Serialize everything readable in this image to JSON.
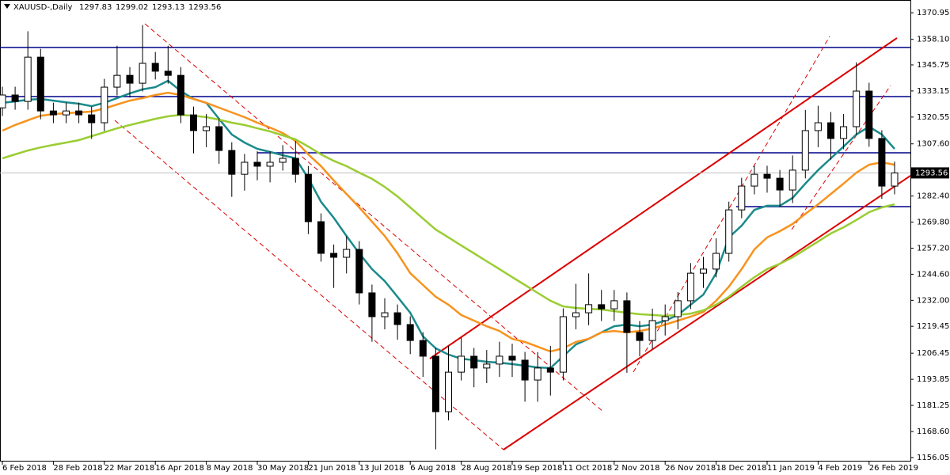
{
  "chart_data": {
    "type": "candlestick",
    "title": "XAUUSD-,Daily",
    "header_values": [
      1297.83,
      1299.02,
      1293.13,
      1293.56
    ],
    "last_price": 1293.56,
    "categories": [
      "6 Feb 2018",
      null,
      null,
      null,
      "28 Feb 2018",
      null,
      null,
      null,
      "22 Mar 2018",
      null,
      null,
      null,
      "16 Apr 2018",
      null,
      null,
      null,
      "8 May 2018",
      null,
      null,
      null,
      "30 May 2018",
      null,
      null,
      null,
      "21 Jun 2018",
      null,
      null,
      null,
      "13 Jul 2018",
      null,
      null,
      null,
      "6 Aug 2018",
      null,
      null,
      null,
      "28 Aug 2018",
      null,
      null,
      null,
      "19 Sep 2018",
      null,
      null,
      null,
      "11 Oct 2018",
      null,
      null,
      null,
      "2 Nov 2018",
      null,
      null,
      null,
      "26 Nov 2018",
      null,
      null,
      null,
      "18 Dec 2018",
      null,
      null,
      null,
      "11 Jan 2019",
      null,
      null,
      null,
      "4 Feb 2019",
      null,
      null,
      null,
      "26 Feb 2019",
      null,
      null
    ],
    "open": [
      1325.0,
      1331.2,
      1328.1,
      1349.5,
      1323.5,
      1321.6,
      1323.5,
      1321.6,
      1317.8,
      1335.0,
      1340.7,
      1336.9,
      1346.5,
      1342.7,
      1340.7,
      1321.6,
      1314.0,
      1315.9,
      1304.4,
      1292.9,
      1298.7,
      1296.8,
      1298.7,
      1300.6,
      1292.9,
      1270.0,
      1254.7,
      1252.8,
      1256.6,
      1235.6,
      1224.1,
      1226.0,
      1220.3,
      1212.6,
      1205.0,
      1178.2,
      1197.3,
      1205.0,
      1199.3,
      1201.2,
      1205.0,
      1203.1,
      1193.5,
      1199.3,
      1197.3,
      1224.1,
      1226.0,
      1229.9,
      1227.9,
      1231.8,
      1216.5,
      1212.6,
      1222.2,
      1224.1,
      1231.8,
      1245.1,
      1247.1,
      1254.7,
      1275.7,
      1287.2,
      1292.9,
      1291.0,
      1285.3,
      1294.9,
      1314.0,
      1317.8,
      1310.2,
      1315.9,
      1333.1,
      1310.2,
      1287.2
    ],
    "high": [
      1335.2,
      1335.2,
      1362.0,
      1353.5,
      1327.5,
      1327.5,
      1327.5,
      1325.6,
      1339.0,
      1355.0,
      1344.7,
      1365.0,
      1352.0,
      1355.0,
      1344.7,
      1325.6,
      1322.0,
      1319.9,
      1308.4,
      1302.7,
      1304.0,
      1304.0,
      1307.0,
      1309.0,
      1296.9,
      1274.0,
      1259.0,
      1263.0,
      1260.6,
      1239.6,
      1233.0,
      1230.0,
      1224.3,
      1216.6,
      1209.0,
      1210.0,
      1214.0,
      1209.0,
      1208.0,
      1212.0,
      1211.0,
      1207.1,
      1207.0,
      1210.0,
      1228.1,
      1240.0,
      1245.0,
      1237.0,
      1237.0,
      1235.8,
      1222.0,
      1228.0,
      1230.0,
      1236.0,
      1250.0,
      1253.0,
      1262.0,
      1279.7,
      1291.2,
      1297.0,
      1297.0,
      1295.0,
      1302.0,
      1324.0,
      1326.0,
      1323.0,
      1322.0,
      1347.0,
      1337.1,
      1314.2,
      1299.02
    ],
    "low": [
      1321.0,
      1324.1,
      1324.1,
      1319.5,
      1317.6,
      1317.6,
      1317.6,
      1310.0,
      1313.8,
      1331.0,
      1330.0,
      1332.9,
      1338.7,
      1336.7,
      1317.6,
      1303.0,
      1306.0,
      1298.0,
      1282.0,
      1285.0,
      1290.0,
      1289.0,
      1294.7,
      1288.9,
      1264.0,
      1250.7,
      1238.0,
      1245.0,
      1230.0,
      1212.0,
      1218.0,
      1213.0,
      1206.0,
      1195.0,
      1160.0,
      1174.0,
      1193.3,
      1190.0,
      1192.0,
      1195.0,
      1195.0,
      1183.0,
      1183.0,
      1186.0,
      1193.3,
      1218.0,
      1220.0,
      1222.0,
      1222.0,
      1197.0,
      1205.0,
      1208.6,
      1215.0,
      1218.0,
      1227.8,
      1238.0,
      1243.1,
      1250.7,
      1271.7,
      1283.2,
      1284.0,
      1277.0,
      1279.0,
      1290.9,
      1306.0,
      1300.0,
      1305.0,
      1311.9,
      1306.2,
      1281.0,
      1283.2
    ],
    "close": [
      1331.2,
      1328.1,
      1349.5,
      1323.5,
      1321.6,
      1323.5,
      1321.6,
      1317.8,
      1335.0,
      1340.7,
      1336.9,
      1346.5,
      1342.7,
      1340.7,
      1321.6,
      1314.0,
      1315.9,
      1304.4,
      1292.9,
      1298.7,
      1296.8,
      1298.7,
      1300.6,
      1292.9,
      1270.0,
      1254.7,
      1252.8,
      1256.6,
      1235.6,
      1224.1,
      1226.0,
      1220.3,
      1212.6,
      1205.0,
      1178.2,
      1197.3,
      1205.0,
      1199.3,
      1201.2,
      1205.0,
      1203.1,
      1193.5,
      1199.3,
      1197.3,
      1224.1,
      1226.0,
      1229.9,
      1227.9,
      1231.8,
      1216.5,
      1212.6,
      1222.2,
      1224.1,
      1231.8,
      1245.1,
      1247.1,
      1254.7,
      1275.7,
      1287.2,
      1292.9,
      1291.0,
      1285.3,
      1294.9,
      1314.0,
      1317.8,
      1310.2,
      1315.9,
      1333.1,
      1310.2,
      1287.2,
      1293.56
    ],
    "series": [
      {
        "color": "#1b8a8c",
        "values": [
          1327.4,
          1328.1,
          1328.9,
          1329.3,
          1328.5,
          1327.7,
          1327.0,
          1325.8,
          1327.4,
          1329.7,
          1332.0,
          1333.9,
          1335.0,
          1338.1,
          1333.1,
          1329.3,
          1327.4,
          1319.7,
          1312.1,
          1308.2,
          1305.2,
          1303.7,
          1302.1,
          1300.6,
          1291.0,
          1279.6,
          1271.9,
          1263.1,
          1254.7,
          1247.1,
          1241.3,
          1233.7,
          1226.0,
          1214.6,
          1208.8,
          1205.8,
          1203.8,
          1203.1,
          1202.3,
          1201.9,
          1201.2,
          1200.4,
          1199.6,
          1199.3,
          1205.0,
          1210.7,
          1213.4,
          1216.5,
          1219.5,
          1220.3,
          1219.5,
          1220.3,
          1222.2,
          1224.9,
          1229.9,
          1234.8,
          1245.1,
          1262.4,
          1268.1,
          1275.7,
          1277.7,
          1277.7,
          1281.5,
          1288.4,
          1294.9,
          1300.6,
          1306.3,
          1312.1,
          1315.9,
          1312.1,
          1305.2
        ]
      },
      {
        "color": "#f7931e",
        "values": [
          1314.0,
          1316.7,
          1319.0,
          1321.2,
          1322.0,
          1322.4,
          1322.8,
          1323.2,
          1324.7,
          1326.6,
          1328.5,
          1329.7,
          1331.2,
          1332.3,
          1331.2,
          1329.3,
          1327.4,
          1325.1,
          1322.8,
          1320.5,
          1317.8,
          1315.5,
          1312.8,
          1309.0,
          1302.5,
          1296.8,
          1289.9,
          1283.4,
          1276.9,
          1270.0,
          1263.1,
          1254.7,
          1245.1,
          1239.4,
          1233.7,
          1229.9,
          1224.9,
          1222.2,
          1219.5,
          1217.2,
          1213.4,
          1211.9,
          1209.6,
          1207.3,
          1208.8,
          1211.9,
          1213.4,
          1216.5,
          1217.2,
          1216.5,
          1217.2,
          1218.4,
          1220.3,
          1222.2,
          1224.1,
          1226.4,
          1231.8,
          1238.6,
          1247.1,
          1256.6,
          1262.4,
          1265.4,
          1268.9,
          1273.8,
          1278.4,
          1283.4,
          1288.4,
          1293.7,
          1297.5,
          1298.7,
          1297.5
        ]
      },
      {
        "color": "#9acd32",
        "values": [
          1300.6,
          1302.5,
          1304.4,
          1305.9,
          1307.1,
          1308.2,
          1309.4,
          1311.3,
          1313.2,
          1315.1,
          1316.7,
          1318.2,
          1319.7,
          1320.9,
          1321.6,
          1321.2,
          1320.5,
          1319.3,
          1317.8,
          1316.7,
          1315.1,
          1313.6,
          1311.7,
          1309.8,
          1306.3,
          1302.5,
          1299.4,
          1296.8,
          1293.7,
          1290.7,
          1286.8,
          1282.2,
          1276.9,
          1271.5,
          1266.2,
          1262.4,
          1258.5,
          1254.7,
          1250.9,
          1247.1,
          1243.2,
          1239.4,
          1235.6,
          1231.8,
          1229.1,
          1228.3,
          1227.9,
          1227.6,
          1226.8,
          1226.0,
          1225.3,
          1224.9,
          1224.5,
          1224.9,
          1225.6,
          1227.2,
          1229.9,
          1233.7,
          1238.6,
          1243.2,
          1247.1,
          1249.7,
          1252.8,
          1256.6,
          1260.4,
          1264.3,
          1267.3,
          1270.8,
          1274.6,
          1276.9,
          1278.4
        ]
      }
    ],
    "ylim": [
      1154.5,
      1377.1
    ],
    "yticks": [
      1370.95,
      {
        "value": 1358.1,
        "label": "1358.10"
      },
      1345.75,
      1333.15,
      1320.55,
      {
        "value": 1307.6,
        "label": "1307.60"
      },
      {
        "value": 1282.4,
        "label": "1282.40"
      },
      {
        "value": 1269.8,
        "label": "1269.80"
      },
      {
        "value": 1257.2,
        "label": "1257.20"
      },
      {
        "value": 1244.6,
        "label": "1244.60"
      },
      {
        "value": 1232,
        "label": "1232.00"
      },
      1219.45,
      1206.45,
      1193.85,
      1181.25,
      {
        "value": 1168.6,
        "label": "1168.60"
      },
      1156.05
    ]
  }
}
